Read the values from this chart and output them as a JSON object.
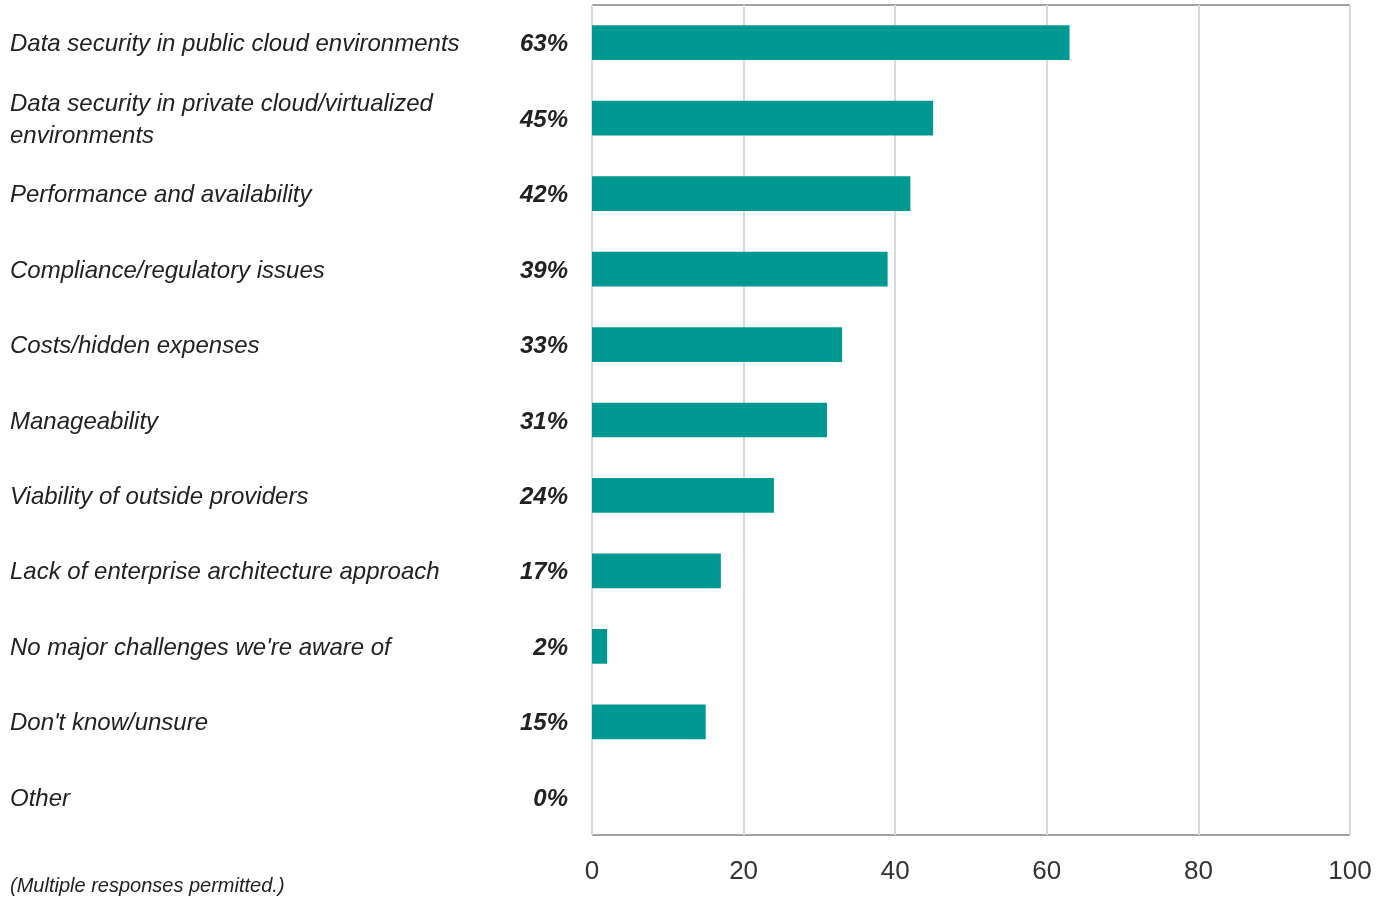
{
  "chart_data": {
    "type": "bar",
    "orientation": "horizontal",
    "categories": [
      "Data security in public cloud environments",
      "Data security in private cloud/virtualized environments",
      "Performance and availability",
      "Compliance/regulatory issues",
      "Costs/hidden expenses",
      "Manageability",
      "Viability of outside providers",
      "Lack of enterprise architecture approach",
      "No major challenges we're aware of",
      "Don't know/unsure",
      "Other"
    ],
    "values": [
      63,
      45,
      42,
      39,
      33,
      31,
      24,
      17,
      2,
      15,
      0
    ],
    "value_labels": [
      "63%",
      "45%",
      "42%",
      "39%",
      "33%",
      "31%",
      "24%",
      "17%",
      "2%",
      "15%",
      "0%"
    ],
    "color": "#009991",
    "xlim": [
      0,
      100
    ],
    "xticks": [
      0,
      20,
      40,
      60,
      80,
      100
    ],
    "grid": "x",
    "annotations": [
      "(Multiple responses permitted.)"
    ]
  }
}
